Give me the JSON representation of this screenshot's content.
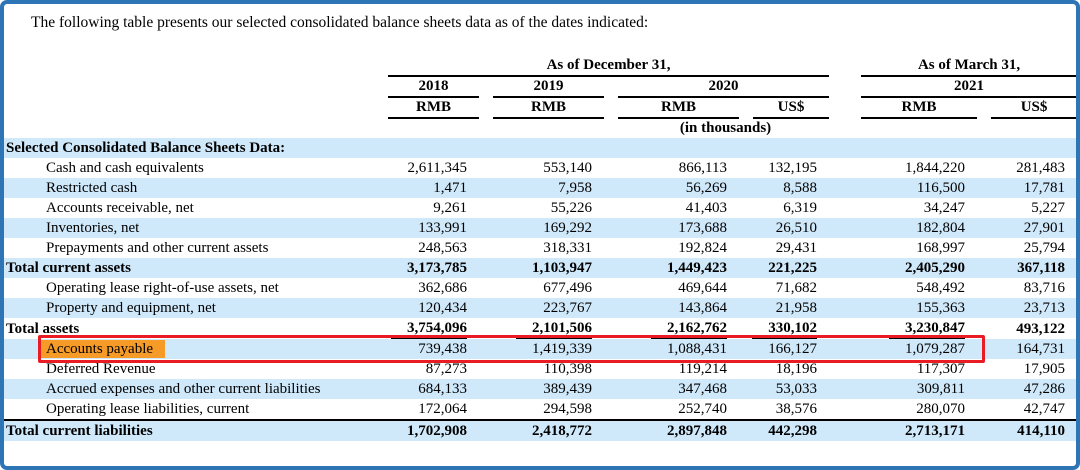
{
  "intro": "The following table presents our selected consolidated balance sheets data as of the dates indicated:",
  "header": {
    "groups": [
      {
        "label": "As of December 31,",
        "span": 4
      },
      {
        "label": "As of March 31,",
        "span": 2
      }
    ],
    "years": [
      {
        "label": "2018",
        "span": 1
      },
      {
        "label": "2019",
        "span": 1
      },
      {
        "label": "2020",
        "span": 2
      },
      {
        "label": "2021",
        "span": 2
      }
    ],
    "currencies": [
      "RMB",
      "RMB",
      "RMB",
      "US$",
      "RMB",
      "US$"
    ],
    "units_note": "(in thousands)"
  },
  "rows": [
    {
      "label": "Selected Consolidated Balance Sheets Data:",
      "style": "section",
      "band": true,
      "values": [
        "",
        "",
        "",
        "",
        "",
        ""
      ]
    },
    {
      "label": "Cash and cash equivalents",
      "style": "item",
      "band": false,
      "values": [
        "2,611,345",
        "553,140",
        "866,113",
        "132,195",
        "1,844,220",
        "281,483"
      ]
    },
    {
      "label": "Restricted cash",
      "style": "item",
      "band": true,
      "values": [
        "1,471",
        "7,958",
        "56,269",
        "8,588",
        "116,500",
        "17,781"
      ]
    },
    {
      "label": "Accounts receivable, net",
      "style": "item",
      "band": false,
      "values": [
        "9,261",
        "55,226",
        "41,403",
        "6,319",
        "34,247",
        "5,227"
      ]
    },
    {
      "label": "Inventories, net",
      "style": "item",
      "band": true,
      "values": [
        "133,991",
        "169,292",
        "173,688",
        "26,510",
        "182,804",
        "27,901"
      ]
    },
    {
      "label": "Prepayments and other current assets",
      "style": "item",
      "band": false,
      "values": [
        "248,563",
        "318,331",
        "192,824",
        "29,431",
        "168,997",
        "25,794"
      ]
    },
    {
      "label": "Total current assets",
      "style": "total",
      "band": true,
      "values": [
        "3,173,785",
        "1,103,947",
        "1,449,423",
        "221,225",
        "2,405,290",
        "367,118"
      ]
    },
    {
      "label": "Operating lease right-of-use assets, net",
      "style": "item",
      "band": false,
      "values": [
        "362,686",
        "677,496",
        "469,644",
        "71,682",
        "548,492",
        "83,716"
      ]
    },
    {
      "label": "Property and equipment, net",
      "style": "item",
      "band": true,
      "values": [
        "120,434",
        "223,767",
        "143,864",
        "21,958",
        "155,363",
        "23,713"
      ]
    },
    {
      "label": "Total assets",
      "style": "total",
      "band": false,
      "underline_cols": [
        0,
        1,
        2,
        3,
        4
      ],
      "values": [
        "3,754,096",
        "2,101,506",
        "2,162,762",
        "330,102",
        "3,230,847",
        "493,122"
      ]
    },
    {
      "label": "Accounts payable",
      "style": "item",
      "band": true,
      "highlight": true,
      "annotated": true,
      "values": [
        "739,438",
        "1,419,339",
        "1,088,431",
        "166,127",
        "1,079,287",
        "164,731"
      ]
    },
    {
      "label": "Deferred Revenue",
      "style": "item",
      "band": false,
      "values": [
        "87,273",
        "110,398",
        "119,214",
        "18,196",
        "117,307",
        "17,905"
      ]
    },
    {
      "label": "Accrued expenses and other current liabilities",
      "style": "item",
      "band": true,
      "values": [
        "684,133",
        "389,439",
        "347,468",
        "53,033",
        "309,811",
        "47,286"
      ]
    },
    {
      "label": "Operating lease liabilities, current",
      "style": "item",
      "band": false,
      "values": [
        "172,064",
        "294,598",
        "252,740",
        "38,576",
        "280,070",
        "42,747"
      ]
    },
    {
      "label": "Total current liabilities",
      "style": "total",
      "band": true,
      "rule_top": true,
      "values": [
        "1,702,908",
        "2,418,772",
        "2,897,848",
        "442,298",
        "2,713,171",
        "414,110"
      ]
    }
  ],
  "annotations": {
    "highlighted_row_label": "Accounts payable",
    "highlight_color": "#f79b28",
    "red_box_color": "#e91c23"
  },
  "colors": {
    "row_band": "#cfe9fb",
    "frame_border": "#2e75b6",
    "text": "#000000"
  }
}
